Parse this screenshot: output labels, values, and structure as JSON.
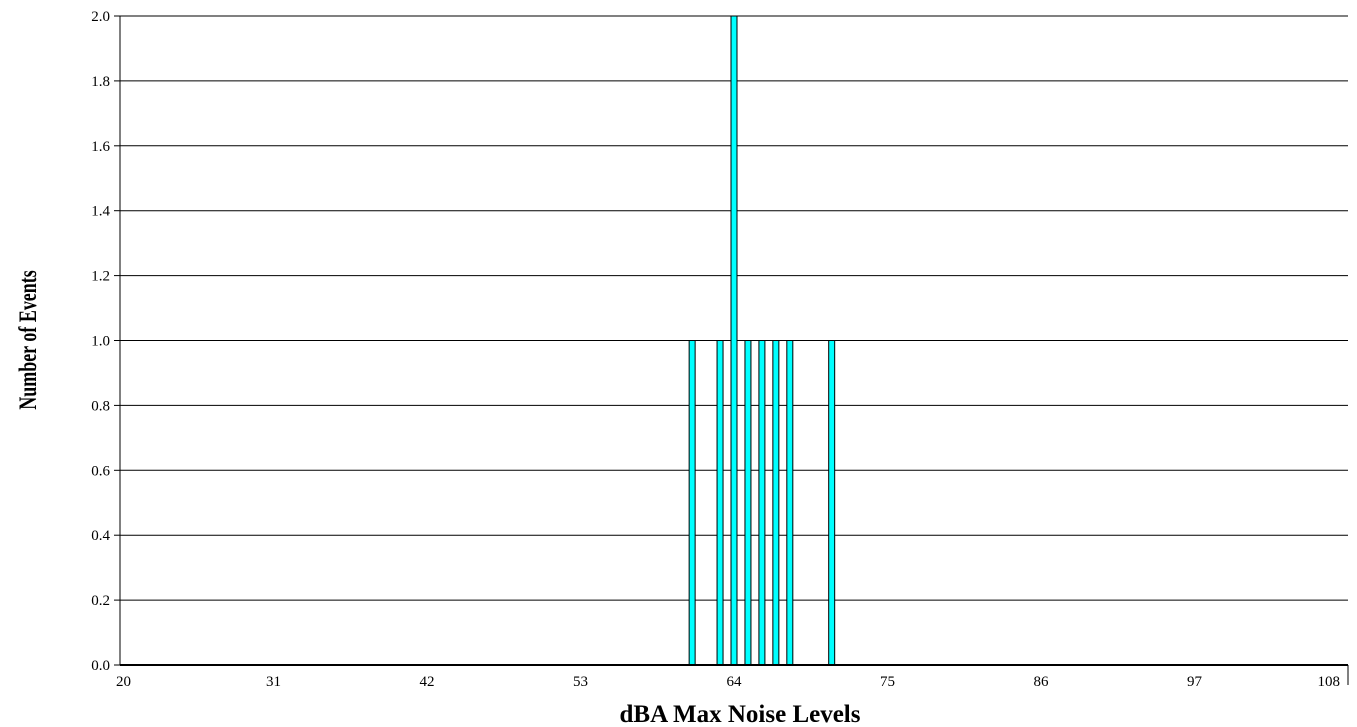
{
  "chart_data": {
    "type": "bar",
    "title": "",
    "xlabel": "dBA Max Noise Levels",
    "ylabel": "Number of Events",
    "xlim": [
      20,
      108
    ],
    "ylim": [
      0,
      2
    ],
    "x_ticks": [
      "20",
      "31",
      "42",
      "53",
      "64",
      "75",
      "86",
      "97",
      "108"
    ],
    "y_ticks": [
      "0.0",
      "0.2",
      "0.4",
      "0.6",
      "0.8",
      "1.0",
      "1.2",
      "1.4",
      "1.6",
      "1.8",
      "2.0"
    ],
    "grid": "horizontal",
    "bar_color": "#00ffff",
    "x": [
      61,
      63,
      64,
      65,
      66,
      67,
      68,
      71
    ],
    "values": [
      1,
      1,
      2,
      1,
      1,
      1,
      1,
      1
    ]
  }
}
